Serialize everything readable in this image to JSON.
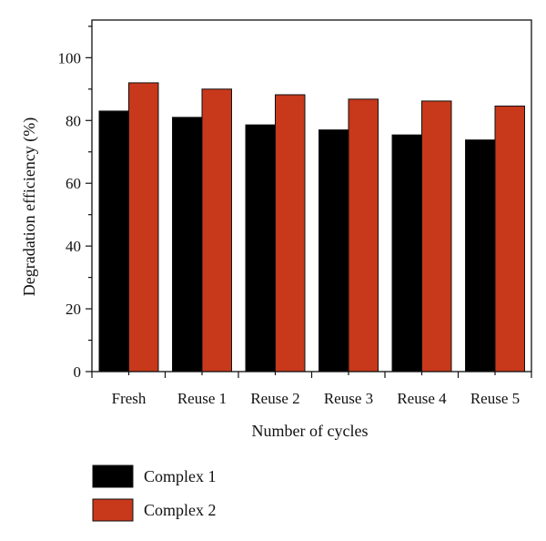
{
  "chart_data": {
    "type": "bar",
    "title": "",
    "xlabel": "Number of cycles",
    "ylabel": "Degradation efficiency (%)",
    "categories": [
      "Fresh",
      "Reuse 1",
      "Reuse 2",
      "Reuse 3",
      "Reuse 4",
      "Reuse 5"
    ],
    "series": [
      {
        "name": "Complex 1",
        "color": "#000000",
        "values": [
          83,
          81,
          78.6,
          77,
          75.4,
          73.8
        ]
      },
      {
        "name": "Complex 2",
        "color": "#c8381b",
        "values": [
          92,
          90,
          88.2,
          86.8,
          86.2,
          84.6
        ]
      }
    ],
    "ylim": [
      0,
      112
    ],
    "yticks": [
      0,
      20,
      40,
      60,
      80,
      100
    ],
    "ytick_labels": [
      "0",
      "20",
      "40",
      "60",
      "80",
      "100"
    ],
    "grid": false,
    "legend_placement": "bottom-left"
  }
}
